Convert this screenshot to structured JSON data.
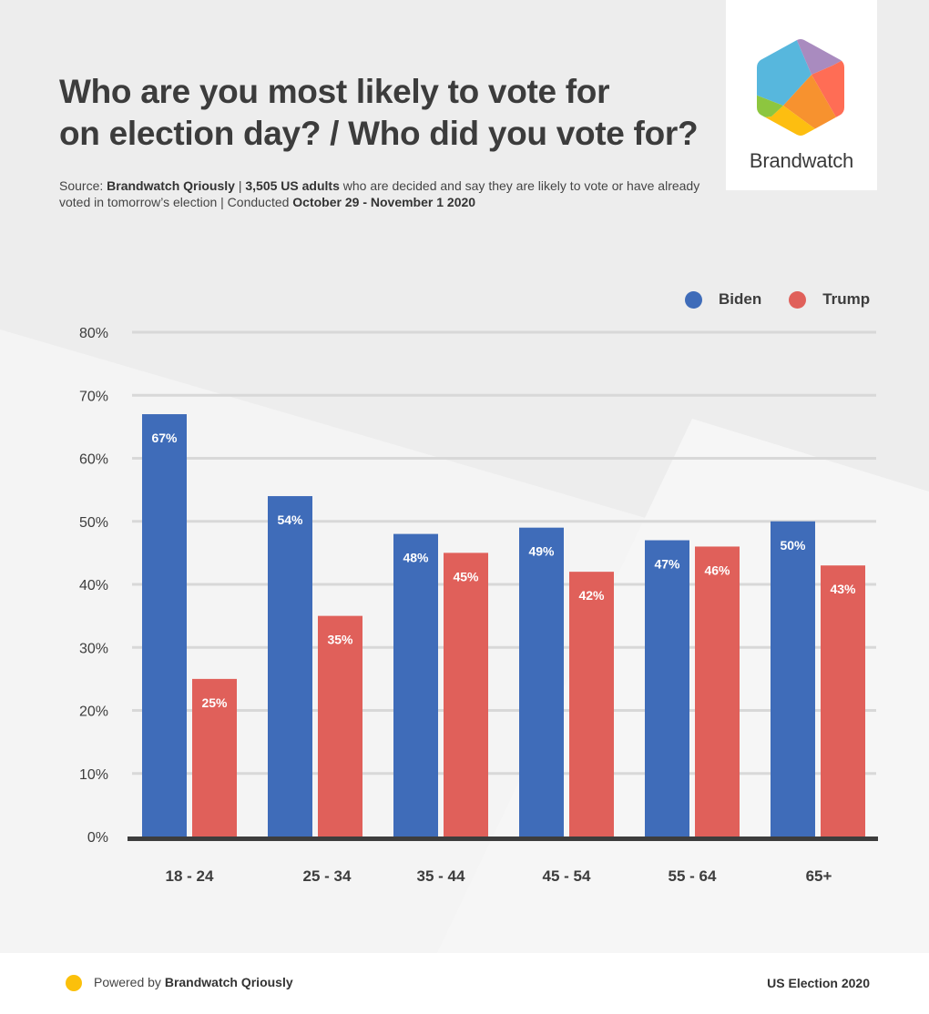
{
  "header": {
    "title_line1": "Who are you most likely to vote for",
    "title_line2": "on election day? / Who did you vote for?",
    "subtitle": {
      "source_label": "Source: ",
      "source_name": "Brandwatch Qriously",
      "sep1": " |  ",
      "sample": "3,505 US adults",
      "description": " who are decided and say they are likely to vote or have already voted in tomorrow’s election | Conducted ",
      "dates": "October 29 - November 1 2020"
    }
  },
  "logo": {
    "text": "Brandwatch",
    "colors": [
      "#57b7dd",
      "#a98bbf",
      "#ff6d55",
      "#f7922f",
      "#fdbe10",
      "#8dc63f"
    ]
  },
  "chart_data": {
    "type": "bar",
    "title": "Who are you most likely to vote for on election day? / Who did you vote for?",
    "xlabel": "",
    "ylabel": "",
    "categories": [
      "18 - 24",
      "25 - 34",
      "35 - 44",
      "45 - 54",
      "55 - 64",
      "65+"
    ],
    "series": [
      {
        "name": "Biden",
        "color": "#3f6cb9",
        "values": [
          67,
          54,
          48,
          49,
          47,
          50
        ],
        "labels": [
          "67%",
          "54%",
          "48%",
          "49%",
          "47%",
          "50%"
        ]
      },
      {
        "name": "Trump",
        "color": "#e0605a",
        "values": [
          25,
          35,
          45,
          42,
          46,
          43
        ],
        "labels": [
          "25%",
          "35%",
          "45%",
          "42%",
          "46%",
          "43%"
        ]
      }
    ],
    "ylim": [
      0,
      80
    ],
    "yticks": [
      0,
      10,
      20,
      30,
      40,
      50,
      60,
      70,
      80
    ],
    "ytick_labels": [
      "0%",
      "10%",
      "20%",
      "30%",
      "40%",
      "50%",
      "60%",
      "70%",
      "80%"
    ],
    "grid": true,
    "legend_position": "top-right"
  },
  "footer": {
    "powered_by": "Powered by ",
    "brand": "Brandwatch Qriously",
    "right_label": "US Election 2020",
    "dot_color": "#fbc00b"
  }
}
